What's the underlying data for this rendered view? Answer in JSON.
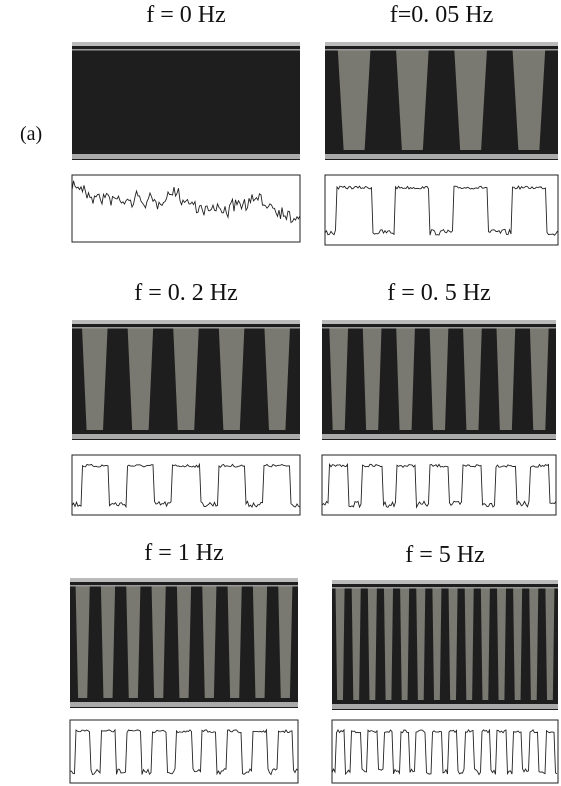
{
  "label": "(a)",
  "panels": [
    {
      "title": "f = 0 Hz"
    },
    {
      "title": "f=0. 05 Hz"
    },
    {
      "title": "f = 0. 2 Hz"
    },
    {
      "title": "f = 0. 5 Hz"
    },
    {
      "title": "f = 1 Hz"
    },
    {
      "title": "f = 5 Hz"
    }
  ]
}
